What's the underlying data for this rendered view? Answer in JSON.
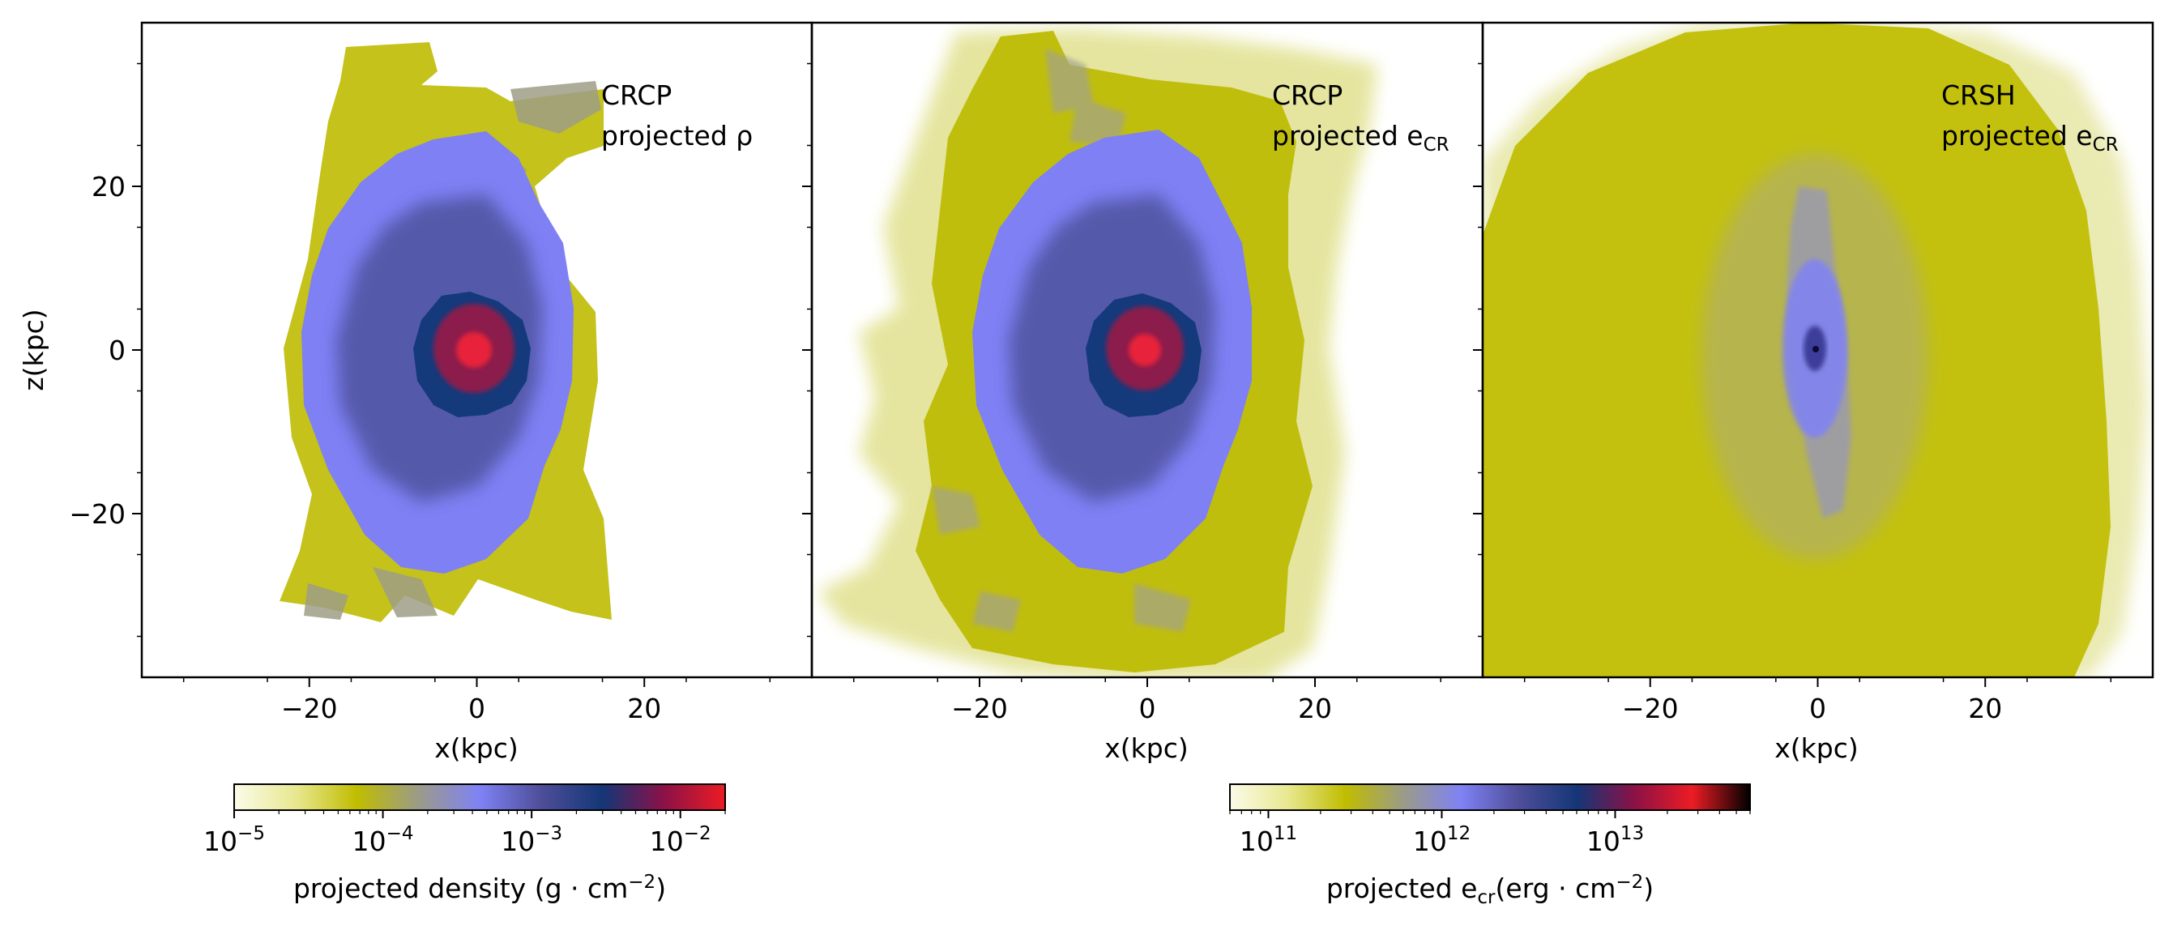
{
  "chart_data": {
    "type": "heatmap",
    "panels": [
      {
        "name": "crcp-density",
        "annotation_line1": "CRCP",
        "annotation_line2_base": "projected ρ",
        "annotation_line2_sub": "",
        "xlabel": "x(kpc)",
        "ylabel": "z(kpc)",
        "xlim": [
          -40,
          40
        ],
        "ylim": [
          -40,
          40
        ],
        "xticks": [
          -20,
          0,
          20
        ],
        "yticks": [
          -20,
          0,
          20
        ],
        "field": "projected density",
        "shape": "compact-blob",
        "extent_x": [
          -24,
          17
        ],
        "extent_z": [
          -33,
          37
        ],
        "core_radius_kpc": 6,
        "peak_log": -1.6
      },
      {
        "name": "crcp-ecr",
        "annotation_line1": "CRCP",
        "annotation_line2_base": "projected e",
        "annotation_line2_sub": "CR",
        "xlabel": "x(kpc)",
        "ylabel": "",
        "xlim": [
          -40,
          40
        ],
        "ylim": [
          -40,
          40
        ],
        "xticks": [
          -20,
          0,
          20
        ],
        "yticks": [
          -20,
          0,
          20
        ],
        "field": "projected e_cr",
        "shape": "extended-blob",
        "extent_x": [
          -40,
          28
        ],
        "extent_z": [
          -40,
          40
        ],
        "core_radius_kpc": 6,
        "peak_log": 13.5
      },
      {
        "name": "crsh-ecr",
        "annotation_line1": "CRSH",
        "annotation_line2_base": "projected e",
        "annotation_line2_sub": "CR",
        "xlabel": "x(kpc)",
        "ylabel": "",
        "xlim": [
          -40,
          40
        ],
        "ylim": [
          -40,
          40
        ],
        "xticks": [
          -20,
          0,
          20
        ],
        "yticks": [
          -20,
          0,
          20
        ],
        "field": "projected e_cr",
        "shape": "diffuse-halo",
        "extent_x": [
          -40,
          37
        ],
        "extent_z": [
          -40,
          40
        ],
        "core_radius_kpc": 1,
        "peak_log": 13.0
      }
    ],
    "colorbars": [
      {
        "name": "density-colorbar",
        "scale": "log",
        "range": [
          1e-05,
          0.02
        ],
        "tick_labels": [
          {
            "base": "10",
            "exp": "−5",
            "value": 1e-05
          },
          {
            "base": "10",
            "exp": "−4",
            "value": 0.0001
          },
          {
            "base": "10",
            "exp": "−3",
            "value": 0.001
          },
          {
            "base": "10",
            "exp": "−2",
            "value": 0.01
          }
        ],
        "label_base": "projected density (g · cm",
        "label_exp": "−2",
        "label_tail": ")",
        "stops": [
          "#fbfbe9",
          "#e8e891",
          "#c0bd00",
          "#9b9b88",
          "#7f82f5",
          "#4e4e99",
          "#143677",
          "#8b1147",
          "#ec1c24"
        ]
      },
      {
        "name": "ecr-colorbar",
        "scale": "log",
        "range": [
          60000000000.0,
          60000000000000.0
        ],
        "tick_labels": [
          {
            "base": "10",
            "exp": "11",
            "value": 100000000000.0
          },
          {
            "base": "10",
            "exp": "12",
            "value": 1000000000000.0
          },
          {
            "base": "10",
            "exp": "13",
            "value": 10000000000000.0
          }
        ],
        "label_base": "projected e",
        "label_sub": "cr",
        "label_mid": "(erg · cm",
        "label_exp": "−2",
        "label_tail": ")",
        "stops": [
          "#fbfbe9",
          "#e8e891",
          "#c0bd00",
          "#9b9b88",
          "#7f82f5",
          "#4e4e99",
          "#143677",
          "#8b1147",
          "#ec1c24",
          "#000000"
        ]
      }
    ]
  }
}
